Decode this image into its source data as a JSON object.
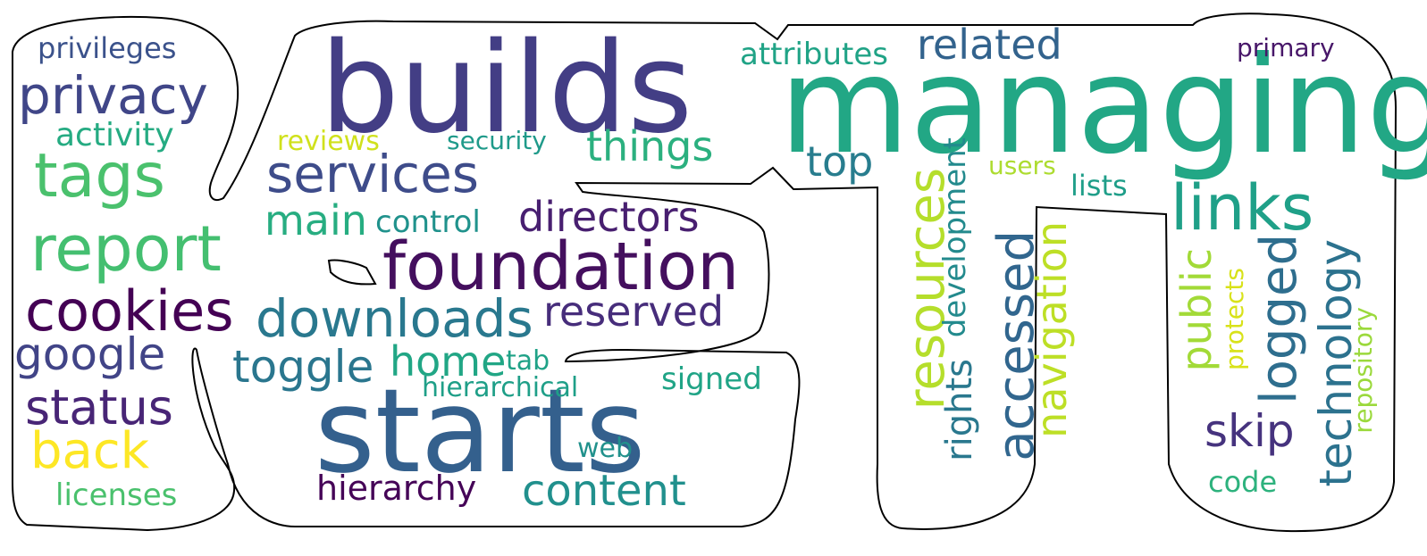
{
  "words": [
    {
      "text": "managing",
      "color": "#22a785"
    },
    {
      "text": "builds",
      "color": "#433e85"
    },
    {
      "text": "starts",
      "color": "#34608d"
    },
    {
      "text": "foundation",
      "color": "#440f5e"
    },
    {
      "text": "services",
      "color": "#3e4c8a"
    },
    {
      "text": "downloads",
      "color": "#29788e"
    },
    {
      "text": "directors",
      "color": "#481f70"
    },
    {
      "text": "reserved",
      "color": "#472d7b"
    },
    {
      "text": "content",
      "color": "#21908d"
    },
    {
      "text": "things",
      "color": "#2bb07f"
    },
    {
      "text": "related",
      "color": "#33638d"
    },
    {
      "text": "attributes",
      "color": "#20a386"
    },
    {
      "text": "primary",
      "color": "#481769"
    },
    {
      "text": "top",
      "color": "#287d8e"
    },
    {
      "text": "users",
      "color": "#addc30"
    },
    {
      "text": "lists",
      "color": "#1f9e89"
    },
    {
      "text": "links",
      "color": "#1fa088"
    },
    {
      "text": "resources",
      "color": "#b5de2b"
    },
    {
      "text": "development",
      "color": "#238a8d"
    },
    {
      "text": "rights",
      "color": "#2a788e"
    },
    {
      "text": "accessed",
      "color": "#31668e"
    },
    {
      "text": "navigation",
      "color": "#bddf26"
    },
    {
      "text": "public",
      "color": "#a2da37"
    },
    {
      "text": "protects",
      "color": "#d8e219"
    },
    {
      "text": "logged",
      "color": "#2e6e8e"
    },
    {
      "text": "technology",
      "color": "#2c728e"
    },
    {
      "text": "repository",
      "color": "#9bd93c"
    },
    {
      "text": "skip",
      "color": "#46337e"
    },
    {
      "text": "code",
      "color": "#2db27d"
    },
    {
      "text": "privileges",
      "color": "#3b528b"
    },
    {
      "text": "privacy",
      "color": "#404688"
    },
    {
      "text": "activity",
      "color": "#25ab82"
    },
    {
      "text": "tags",
      "color": "#4ac16d"
    },
    {
      "text": "report",
      "color": "#44bf70"
    },
    {
      "text": "cookies",
      "color": "#440154"
    },
    {
      "text": "google",
      "color": "#414487"
    },
    {
      "text": "status",
      "color": "#482576"
    },
    {
      "text": "back",
      "color": "#fde725"
    },
    {
      "text": "licenses",
      "color": "#4ac16d"
    },
    {
      "text": "reviews",
      "color": "#d0e11c"
    },
    {
      "text": "security",
      "color": "#1f9a8a"
    },
    {
      "text": "main",
      "color": "#27ad81"
    },
    {
      "text": "control",
      "color": "#20928c"
    },
    {
      "text": "toggle",
      "color": "#2a768e"
    },
    {
      "text": "home",
      "color": "#21a685"
    },
    {
      "text": "tab",
      "color": "#1fa287"
    },
    {
      "text": "hierarchical",
      "color": "#1f9f88"
    },
    {
      "text": "signed",
      "color": "#20a486"
    },
    {
      "text": "web",
      "color": "#21918c"
    },
    {
      "text": "hierarchy",
      "color": "#450457"
    }
  ]
}
